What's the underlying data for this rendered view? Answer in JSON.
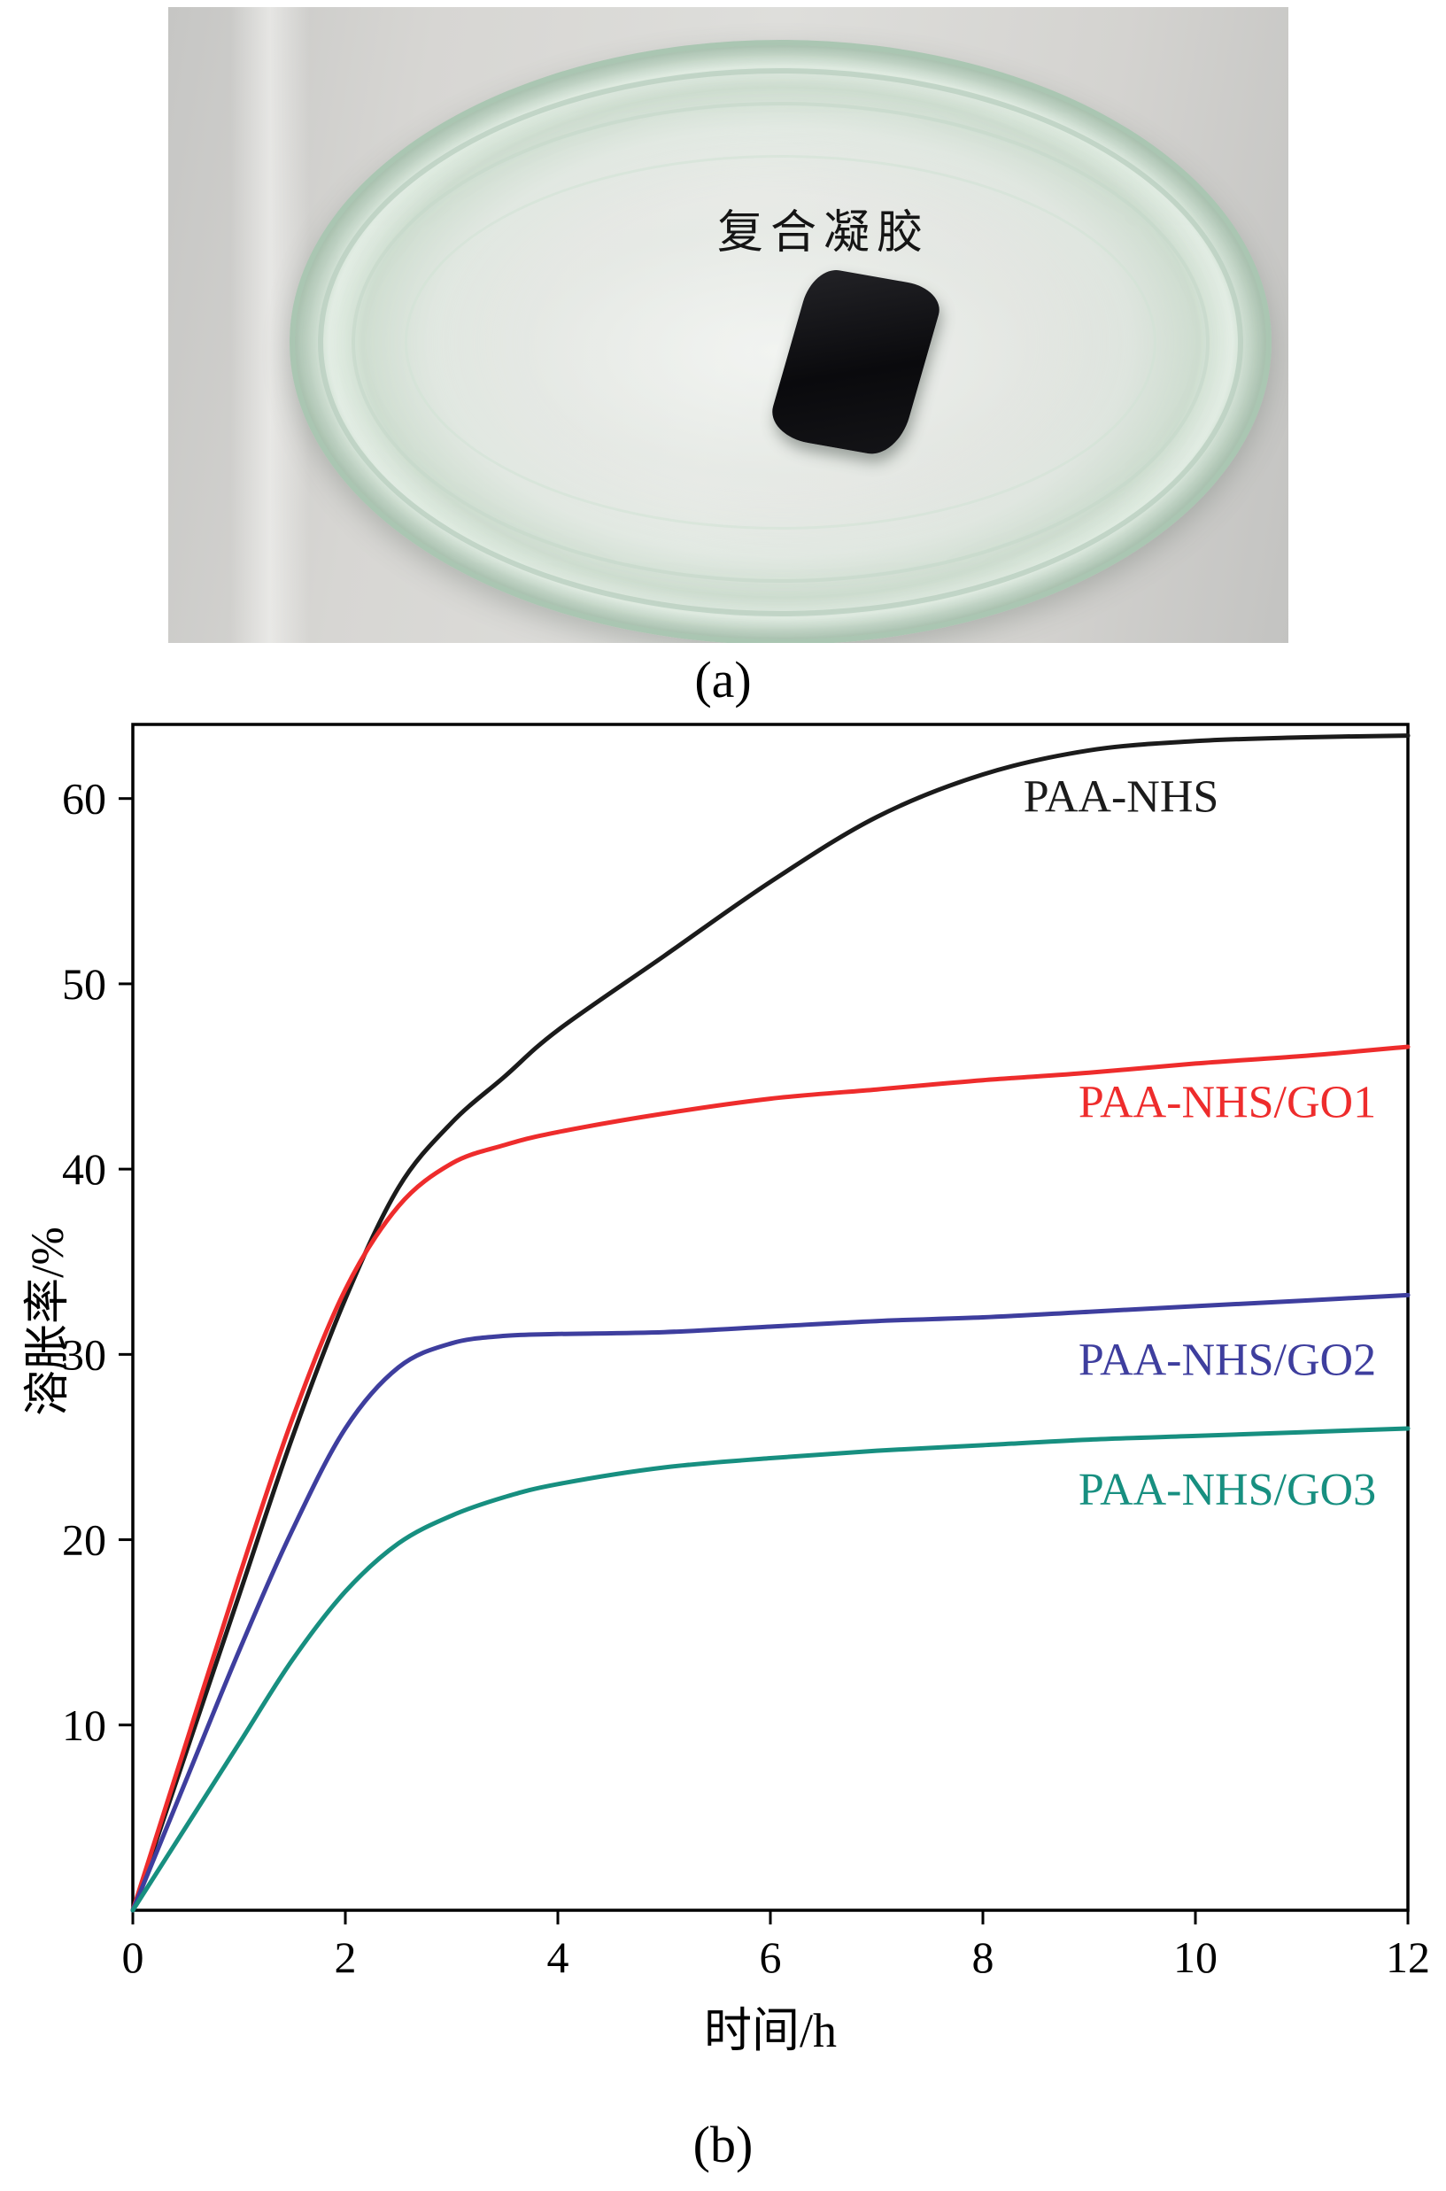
{
  "figure": {
    "panel_a": {
      "label": "(a)",
      "annotation": "复合凝胶"
    },
    "panel_b": {
      "label": "(b)"
    }
  },
  "chart_data": {
    "type": "line",
    "title": "",
    "xlabel": "时间/h",
    "ylabel": "溶胀率/%",
    "xlim": [
      0,
      12
    ],
    "ylim": [
      0,
      64
    ],
    "xticks": [
      0,
      2,
      4,
      6,
      8,
      10,
      12
    ],
    "yticks": [
      10,
      20,
      30,
      40,
      50,
      60
    ],
    "grid": false,
    "legend": "inline-labels",
    "x": [
      0,
      0.5,
      1,
      1.5,
      2,
      2.5,
      3,
      3.5,
      4,
      5,
      6,
      7,
      8,
      9,
      10,
      11,
      12
    ],
    "series": [
      {
        "name": "PAA-NHS",
        "color": "#1b1b1b",
        "values": [
          0,
          8.5,
          17,
          25.5,
          33,
          39,
          42.5,
          45,
          47.5,
          51.5,
          55.5,
          59,
          61.3,
          62.6,
          63.1,
          63.3,
          63.4
        ],
        "label_pos": [
          9.3,
          59.3
        ]
      },
      {
        "name": "PAA-NHS/GO1",
        "color": "#ee2c2c",
        "values": [
          0,
          9,
          18,
          26.5,
          33.5,
          38,
          40.3,
          41.3,
          42,
          43,
          43.8,
          44.3,
          44.8,
          45.2,
          45.7,
          46.1,
          46.6
        ],
        "label_pos": [
          10.3,
          42.8
        ]
      },
      {
        "name": "PAA-NHS/GO2",
        "color": "#3e3e9e",
        "values": [
          0,
          7,
          14,
          20.5,
          26,
          29.3,
          30.6,
          31,
          31.1,
          31.2,
          31.5,
          31.8,
          32,
          32.3,
          32.6,
          32.9,
          33.2
        ],
        "label_pos": [
          10.3,
          28.9
        ]
      },
      {
        "name": "PAA-NHS/GO3",
        "color": "#178f80",
        "values": [
          0,
          4.5,
          9,
          13.5,
          17.2,
          19.8,
          21.3,
          22.3,
          23,
          23.9,
          24.4,
          24.8,
          25.1,
          25.4,
          25.6,
          25.8,
          26
        ],
        "label_pos": [
          10.3,
          21.9
        ]
      }
    ]
  }
}
